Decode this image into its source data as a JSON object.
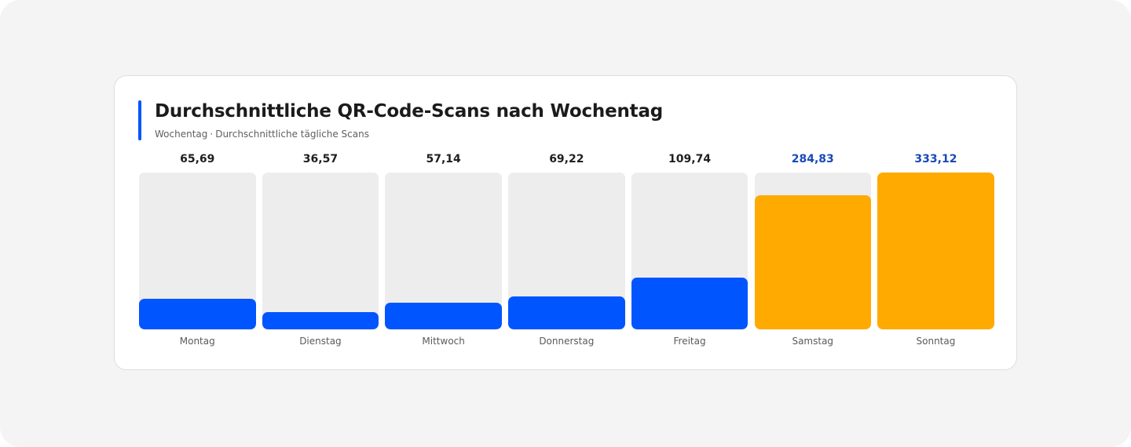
{
  "chart": {
    "title": "Durchschnittliche QR-Code-Scans nach Wochentag",
    "subtitle_x": "Wochentag",
    "subtitle_sep": "·",
    "subtitle_y": "Durchschnittliche tägliche Scans"
  },
  "colors": {
    "primary": "#0055ff",
    "highlight": "#ffaa00",
    "highlight_label": "#1849b8",
    "track": "#ededed",
    "accent": "#0055ff"
  },
  "chart_data": {
    "type": "bar",
    "title": "Durchschnittliche QR-Code-Scans nach Wochentag",
    "xlabel": "Wochentag",
    "ylabel": "Durchschnittliche tägliche Scans",
    "categories": [
      "Montag",
      "Dienstag",
      "Mittwoch",
      "Donnerstag",
      "Freitag",
      "Samstag",
      "Sonntag"
    ],
    "values": [
      65.69,
      36.57,
      57.14,
      69.22,
      109.74,
      284.83,
      333.12
    ],
    "value_labels": [
      "65,69",
      "36,57",
      "57,14",
      "69,22",
      "109,74",
      "284,83",
      "333,12"
    ],
    "highlighted": [
      false,
      false,
      false,
      false,
      false,
      true,
      true
    ],
    "ylim": [
      0,
      333.12
    ],
    "grid": false,
    "legend": "none"
  }
}
